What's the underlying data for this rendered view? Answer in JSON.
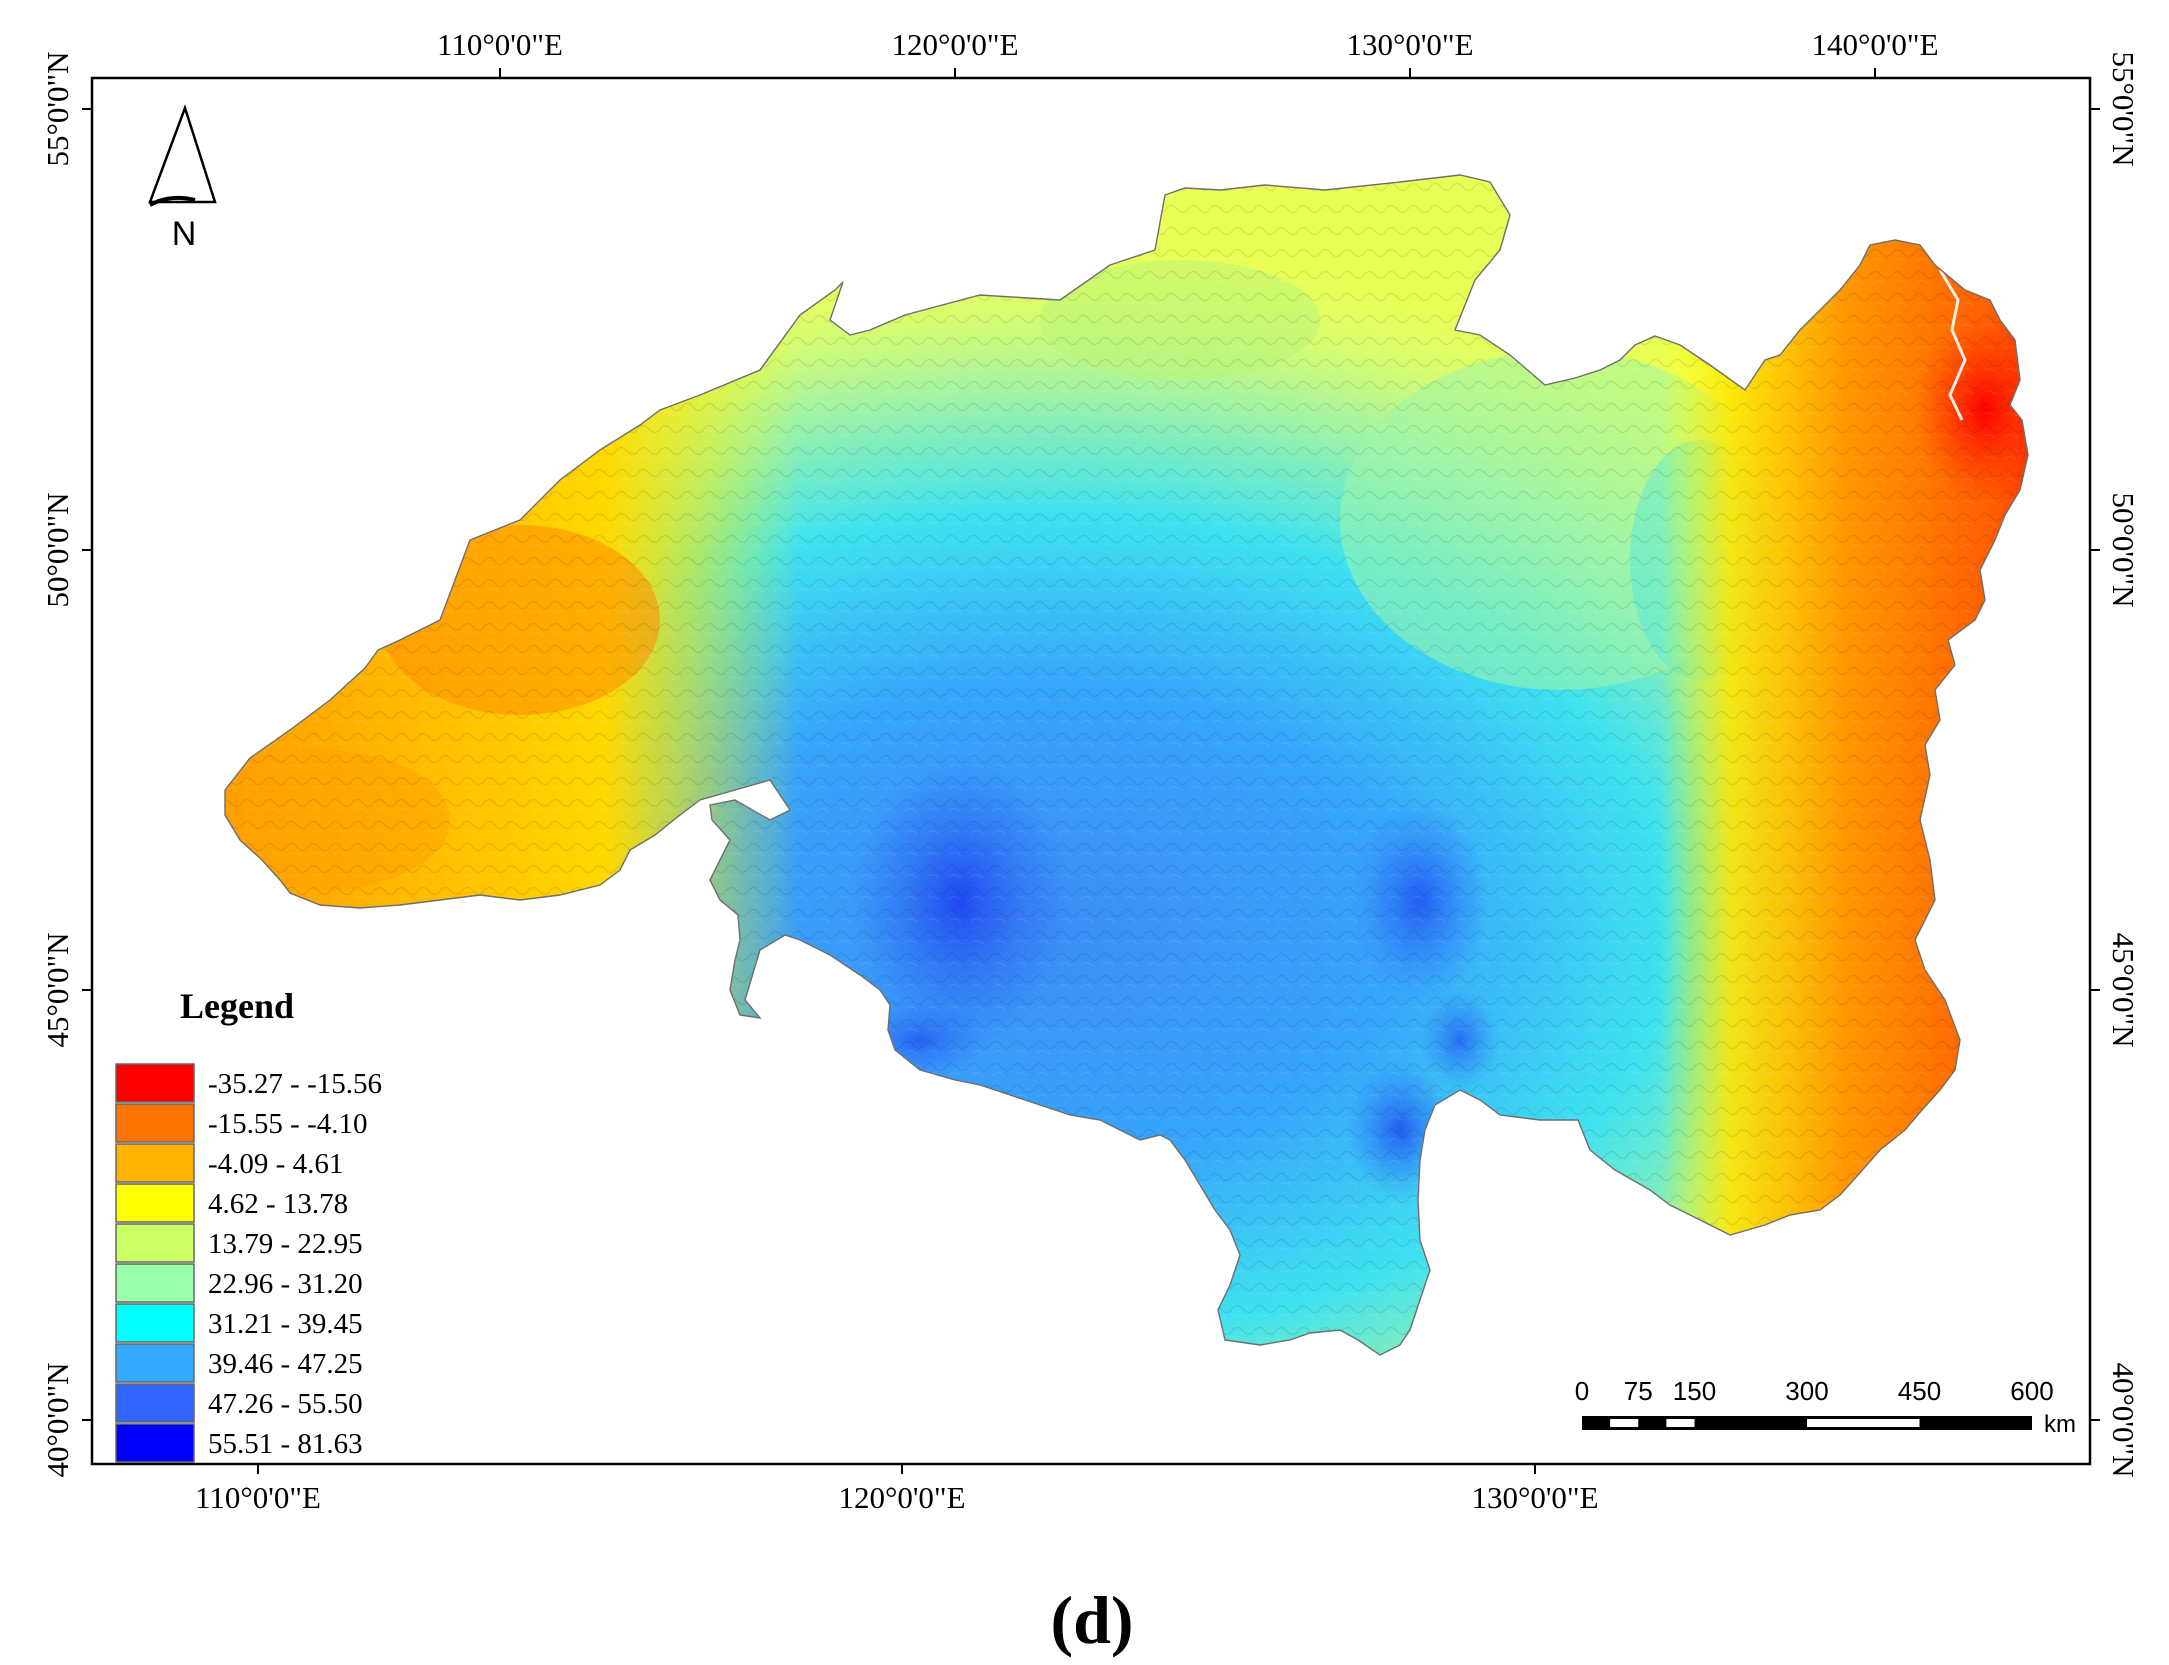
{
  "map": {
    "top_ticks": [
      "110°0'0\"E",
      "120°0'0\"E",
      "130°0'0\"E",
      "140°0'0\"E"
    ],
    "bottom_ticks": [
      "110°0'0\"E",
      "120°0'0\"E",
      "130°0'0\"E"
    ],
    "left_ticks": [
      "55°0'0\"N",
      "50°0'0\"N",
      "45°0'0\"N",
      "40°0'0\"N"
    ],
    "right_ticks": [
      "55°0'0\"N",
      "50°0'0\"N",
      "45°0'0\"N",
      "40°0'0\"N"
    ]
  },
  "north_arrow": {
    "label": "N"
  },
  "legend": {
    "title": "Legend",
    "classes": [
      {
        "label": "-35.27 - -15.56",
        "color": "#ff0000"
      },
      {
        "label": "-15.55 - -4.10",
        "color": "#ff7300"
      },
      {
        "label": "-4.09 - 4.61",
        "color": "#ffb300"
      },
      {
        "label": "4.62 - 13.78",
        "color": "#ffff00"
      },
      {
        "label": "13.79 - 22.95",
        "color": "#ccff66"
      },
      {
        "label": "22.96 - 31.20",
        "color": "#99ffaa"
      },
      {
        "label": "31.21 - 39.45",
        "color": "#00ffff"
      },
      {
        "label": "39.46 - 47.25",
        "color": "#33aaff"
      },
      {
        "label": "47.26 - 55.50",
        "color": "#3366ff"
      },
      {
        "label": "55.51 - 81.63",
        "color": "#0000ff"
      }
    ]
  },
  "scale_bar": {
    "labels": [
      "0",
      "75",
      "150",
      "300",
      "450",
      "600"
    ],
    "unit": "km"
  },
  "panel_label": "(d)"
}
